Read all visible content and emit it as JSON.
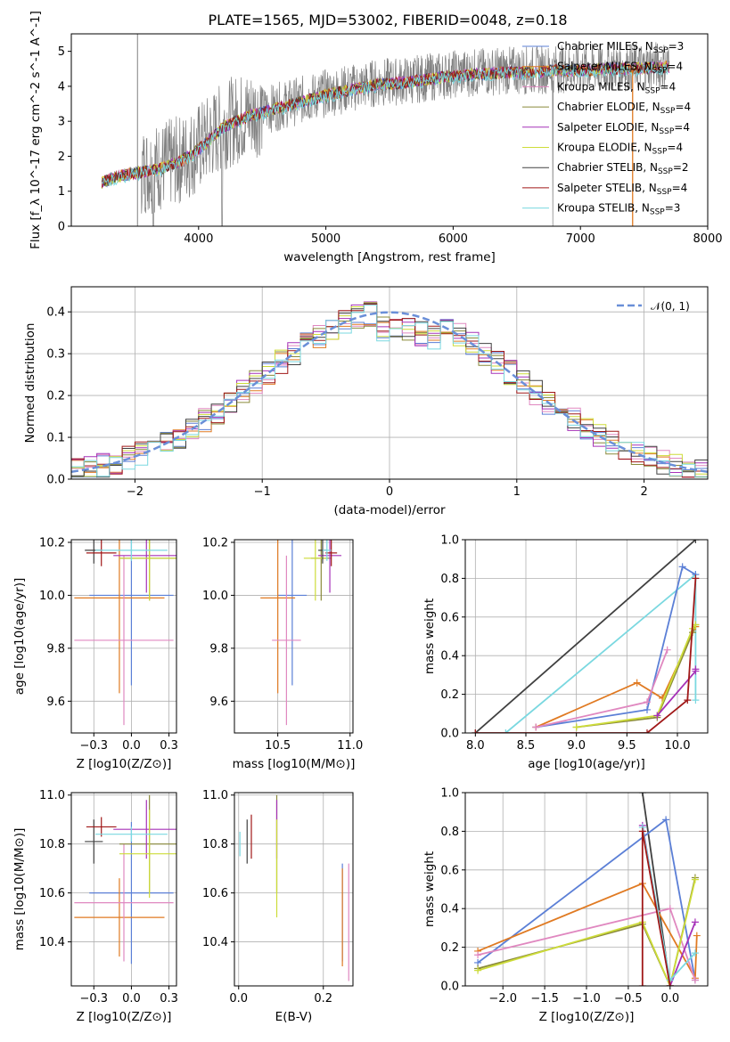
{
  "figure": {
    "title": "PLATE=1565, MJD=53002, FIBERID=0048, z=0.18"
  },
  "colors": {
    "Chabrier MILES": "#5b7fd6",
    "Salpeter MILES": "#e07a22",
    "Kroupa MILES": "#e088c0",
    "Chabrier ELODIE": "#8a8a3a",
    "Salpeter ELODIE": "#a632b8",
    "Kroupa ELODIE": "#cddc39",
    "Chabrier STELIB": "#404040",
    "Salpeter STELIB": "#a01818",
    "Kroupa STELIB": "#7ad8e0",
    "data": "#808080",
    "normal": "#6a8fd8"
  },
  "chart_data": [
    {
      "id": "spectrum",
      "type": "line",
      "title": "PLATE=1565, MJD=53002, FIBERID=0048, z=0.18",
      "xlabel": "wavelength [Angstrom, rest frame]",
      "ylabel": "Flux [f_λ 10^-17 erg cm^-2 s^-1 A^-1]",
      "xlim": [
        3000,
        8000
      ],
      "ylim": [
        0,
        5.5
      ],
      "xticks": [
        4000,
        5000,
        6000,
        7000,
        8000
      ],
      "yticks": [
        0,
        1,
        2,
        3,
        4,
        5
      ],
      "grid": false,
      "legend_position": "top-right",
      "continuum": {
        "x": [
          3240,
          3400,
          3550,
          3700,
          3850,
          3950,
          4050,
          4200,
          4400,
          4600,
          4800,
          5000,
          5200,
          5400,
          5600,
          5800,
          6000,
          6200,
          6400,
          6600,
          6800,
          7000,
          7200,
          7400,
          7600,
          7700
        ],
        "y": [
          1.3,
          1.5,
          1.6,
          1.7,
          1.9,
          2.1,
          2.4,
          2.9,
          3.2,
          3.4,
          3.6,
          3.8,
          3.95,
          4.1,
          4.15,
          4.25,
          4.35,
          4.4,
          4.45,
          4.45,
          4.5,
          4.5,
          4.55,
          4.55,
          4.6,
          4.6
        ]
      },
      "series": [
        {
          "name": "Chabrier MILES",
          "nssp": "3"
        },
        {
          "name": "Salpeter MILES",
          "nssp": "4"
        },
        {
          "name": "Kroupa MILES",
          "nssp": "4"
        },
        {
          "name": "Chabrier ELODIE",
          "nssp": "4"
        },
        {
          "name": "Salpeter ELODIE",
          "nssp": "4"
        },
        {
          "name": "Kroupa ELODIE",
          "nssp": "4"
        },
        {
          "name": "Chabrier STELIB",
          "nssp": "2"
        },
        {
          "name": "Salpeter STELIB",
          "nssp": "4"
        },
        {
          "name": "Kroupa STELIB",
          "nssp": "3"
        }
      ]
    },
    {
      "id": "residuals",
      "type": "bar",
      "xlabel": "(data-model)/error",
      "ylabel": "Normed distribution",
      "xlim": [
        -2.5,
        2.5
      ],
      "ylim": [
        0,
        0.46
      ],
      "xticks": [
        -2,
        -1,
        0,
        1,
        2
      ],
      "yticks": [
        0.0,
        0.1,
        0.2,
        0.3,
        0.4
      ],
      "grid": true,
      "legend": "𝒩(0, 1)",
      "legend_position": "top-right",
      "bin_width": 0.1
    },
    {
      "id": "age-vs-Z",
      "type": "scatter",
      "xlabel": "Z [log10(Z/Z⊙)]",
      "ylabel": "age [log10(age/yr)]",
      "xlim": [
        -0.4,
        0.3
      ],
      "ylim": [
        9.48,
        10.21
      ],
      "xticks": [
        -0.25,
        0.0,
        0.25
      ],
      "yticks": [
        9.6,
        9.8,
        10.0,
        10.2
      ],
      "grid": true,
      "points": [
        {
          "series": "Chabrier MILES",
          "x": 0.0,
          "y": 10.0,
          "xerr": 0.28,
          "yerr": 0.34
        },
        {
          "series": "Salpeter MILES",
          "x": -0.08,
          "y": 9.99,
          "xerr": 0.3,
          "yerr": 0.36
        },
        {
          "series": "Kroupa MILES",
          "x": -0.05,
          "y": 9.83,
          "xerr": 0.33,
          "yerr": 0.32
        },
        {
          "series": "Chabrier ELODIE",
          "x": 0.12,
          "y": 10.14,
          "xerr": 0.2,
          "yerr": 0.16
        },
        {
          "series": "Salpeter ELODIE",
          "x": 0.1,
          "y": 10.15,
          "xerr": 0.22,
          "yerr": 0.14
        },
        {
          "series": "Kroupa ELODIE",
          "x": 0.12,
          "y": 10.14,
          "xerr": 0.2,
          "yerr": 0.16
        },
        {
          "series": "Chabrier STELIB",
          "x": -0.25,
          "y": 10.17,
          "xerr": 0.06,
          "yerr": 0.05
        },
        {
          "series": "Salpeter STELIB",
          "x": -0.2,
          "y": 10.16,
          "xerr": 0.1,
          "yerr": 0.05
        },
        {
          "series": "Kroupa STELIB",
          "x": 0.0,
          "y": 10.17,
          "xerr": 0.24,
          "yerr": 0.04
        }
      ]
    },
    {
      "id": "age-vs-mass",
      "type": "scatter",
      "xlabel": "mass [log10(M/M⊙)]",
      "ylabel": "",
      "xlim": [
        10.2,
        11.02
      ],
      "ylim": [
        9.48,
        10.21
      ],
      "xticks": [
        10.5,
        11.0
      ],
      "yticks": [
        9.6,
        9.8,
        10.0,
        10.2
      ],
      "grid": true,
      "points": [
        {
          "series": "Chabrier MILES",
          "x": 10.6,
          "y": 10.0,
          "xerr": 0.1,
          "yerr": 0.34
        },
        {
          "series": "Salpeter MILES",
          "x": 10.5,
          "y": 9.99,
          "xerr": 0.12,
          "yerr": 0.36
        },
        {
          "series": "Kroupa MILES",
          "x": 10.56,
          "y": 9.83,
          "xerr": 0.1,
          "yerr": 0.32
        },
        {
          "series": "Chabrier ELODIE",
          "x": 10.8,
          "y": 10.14,
          "xerr": 0.07,
          "yerr": 0.16
        },
        {
          "series": "Salpeter ELODIE",
          "x": 10.86,
          "y": 10.15,
          "xerr": 0.08,
          "yerr": 0.14
        },
        {
          "series": "Kroupa ELODIE",
          "x": 10.76,
          "y": 10.14,
          "xerr": 0.08,
          "yerr": 0.16
        },
        {
          "series": "Chabrier STELIB",
          "x": 10.81,
          "y": 10.17,
          "xerr": 0.03,
          "yerr": 0.05
        },
        {
          "series": "Salpeter STELIB",
          "x": 10.87,
          "y": 10.16,
          "xerr": 0.04,
          "yerr": 0.05
        },
        {
          "series": "Kroupa STELIB",
          "x": 10.84,
          "y": 10.17,
          "xerr": 0.03,
          "yerr": 0.04
        }
      ]
    },
    {
      "id": "weight-vs-age",
      "type": "line",
      "xlabel": "age [log10(age/yr)]",
      "ylabel": "mass weight",
      "xlim": [
        7.9,
        10.3
      ],
      "ylim": [
        0,
        1.0
      ],
      "xticks": [
        8.0,
        8.5,
        9.0,
        9.5,
        10.0
      ],
      "yticks": [
        0.0,
        0.2,
        0.4,
        0.6,
        0.8,
        1.0
      ],
      "grid": true,
      "series": [
        {
          "name": "Chabrier STELIB",
          "x": [
            8.0,
            10.18
          ],
          "y": [
            0.0,
            1.0
          ]
        },
        {
          "name": "Kroupa STELIB",
          "x": [
            8.3,
            10.18,
            10.18
          ],
          "y": [
            0.0,
            0.82,
            0.17
          ]
        },
        {
          "name": "Chabrier MILES",
          "x": [
            8.6,
            9.7,
            10.05,
            10.18
          ],
          "y": [
            0.03,
            0.12,
            0.86,
            0.82
          ]
        },
        {
          "name": "Salpeter MILES",
          "x": [
            8.6,
            9.6,
            9.85,
            10.18
          ],
          "y": [
            0.03,
            0.26,
            0.18,
            0.55
          ]
        },
        {
          "name": "Kroupa MILES",
          "x": [
            8.6,
            9.7,
            9.9
          ],
          "y": [
            0.03,
            0.16,
            0.43
          ]
        },
        {
          "name": "Chabrier ELODIE",
          "x": [
            9.0,
            9.8,
            10.15,
            10.18
          ],
          "y": [
            0.03,
            0.08,
            0.52,
            0.56
          ]
        },
        {
          "name": "Kroupa ELODIE",
          "x": [
            9.0,
            9.8,
            10.15,
            10.18
          ],
          "y": [
            0.03,
            0.09,
            0.54,
            0.56
          ]
        },
        {
          "name": "Salpeter ELODIE",
          "x": [
            9.8,
            10.18,
            10.18
          ],
          "y": [
            0.09,
            0.32,
            0.33
          ]
        },
        {
          "name": "Salpeter STELIB",
          "x": [
            8.0,
            9.7,
            10.1,
            10.18
          ],
          "y": [
            0.0,
            0.0,
            0.17,
            0.8
          ]
        }
      ]
    },
    {
      "id": "mass-vs-Z",
      "type": "scatter",
      "xlabel": "Z [log10(Z/Z⊙)]",
      "ylabel": "mass [log10(M/M⊙)]",
      "xlim": [
        -0.4,
        0.3
      ],
      "ylim": [
        10.22,
        11.01
      ],
      "xticks": [
        -0.25,
        0.0,
        0.25
      ],
      "yticks": [
        10.4,
        10.6,
        10.8,
        11.0
      ],
      "grid": true,
      "points": [
        {
          "series": "Chabrier MILES",
          "x": 0.0,
          "y": 10.6,
          "xerr": 0.28,
          "yerr": 0.29
        },
        {
          "series": "Salpeter MILES",
          "x": -0.08,
          "y": 10.5,
          "xerr": 0.3,
          "yerr": 0.16
        },
        {
          "series": "Kroupa MILES",
          "x": -0.05,
          "y": 10.56,
          "xerr": 0.33,
          "yerr": 0.24
        },
        {
          "series": "Chabrier ELODIE",
          "x": 0.12,
          "y": 10.8,
          "xerr": 0.2,
          "yerr": 0.2
        },
        {
          "series": "Salpeter ELODIE",
          "x": 0.1,
          "y": 10.86,
          "xerr": 0.22,
          "yerr": 0.12
        },
        {
          "series": "Kroupa ELODIE",
          "x": 0.12,
          "y": 10.76,
          "xerr": 0.2,
          "yerr": 0.18
        },
        {
          "series": "Chabrier STELIB",
          "x": -0.25,
          "y": 10.81,
          "xerr": 0.06,
          "yerr": 0.09
        },
        {
          "series": "Salpeter STELIB",
          "x": -0.2,
          "y": 10.87,
          "xerr": 0.1,
          "yerr": 0.04
        },
        {
          "series": "Kroupa STELIB",
          "x": 0.0,
          "y": 10.84,
          "xerr": 0.24,
          "yerr": 0.03
        }
      ]
    },
    {
      "id": "mass-vs-EBV",
      "type": "scatter",
      "xlabel": "E(B-V)",
      "ylabel": "",
      "xlim": [
        -0.01,
        0.27
      ],
      "ylim": [
        10.22,
        11.01
      ],
      "xticks": [
        0.0,
        0.2
      ],
      "yticks": [
        10.4,
        10.6,
        10.8,
        11.0
      ],
      "grid": true,
      "points": [
        {
          "series": "Chabrier MILES",
          "x": 0.245,
          "y": 10.52,
          "yerr": 0.2
        },
        {
          "series": "Salpeter MILES",
          "x": 0.245,
          "y": 10.5,
          "yerr": 0.2
        },
        {
          "series": "Kroupa MILES",
          "x": 0.26,
          "y": 10.48,
          "yerr": 0.24
        },
        {
          "series": "Chabrier ELODIE",
          "x": 0.09,
          "y": 10.8,
          "yerr": 0.2
        },
        {
          "series": "Salpeter ELODIE",
          "x": 0.09,
          "y": 10.86,
          "yerr": 0.12
        },
        {
          "series": "Kroupa ELODIE",
          "x": 0.09,
          "y": 10.7,
          "yerr": 0.2
        },
        {
          "series": "Chabrier STELIB",
          "x": 0.02,
          "y": 10.81,
          "yerr": 0.09
        },
        {
          "series": "Salpeter STELIB",
          "x": 0.03,
          "y": 10.83,
          "yerr": 0.09
        },
        {
          "series": "Kroupa STELIB",
          "x": 0.003,
          "y": 10.8,
          "yerr": 0.05
        }
      ]
    },
    {
      "id": "weight-vs-Z",
      "type": "line",
      "xlabel": "Z [log10(Z/Z⊙)]",
      "ylabel": "mass weight",
      "xlim": [
        -2.45,
        0.45
      ],
      "ylim": [
        0,
        1.0
      ],
      "xticks": [
        -2.0,
        -1.5,
        -1.0,
        -0.5,
        0.0
      ],
      "yticks": [
        0.0,
        0.2,
        0.4,
        0.6,
        0.8,
        1.0
      ],
      "grid": true,
      "series": [
        {
          "name": "Chabrier STELIB",
          "x": [
            -0.33,
            0.0
          ],
          "y": [
            1.0,
            0.0
          ]
        },
        {
          "name": "Chabrier MILES",
          "x": [
            -2.3,
            -0.05,
            0.3
          ],
          "y": [
            0.12,
            0.86,
            0.03
          ]
        },
        {
          "name": "Salpeter MILES",
          "x": [
            -2.3,
            -0.33,
            0.3,
            0.32
          ],
          "y": [
            0.18,
            0.53,
            0.04,
            0.26
          ]
        },
        {
          "name": "Kroupa MILES",
          "x": [
            -2.3,
            0.0,
            0.3
          ],
          "y": [
            0.16,
            0.4,
            0.03
          ]
        },
        {
          "name": "Chabrier ELODIE",
          "x": [
            -2.3,
            -0.33,
            0.0,
            0.3
          ],
          "y": [
            0.09,
            0.32,
            0.0,
            0.56
          ]
        },
        {
          "name": "Kroupa ELODIE",
          "x": [
            -2.3,
            -0.33,
            0.0,
            0.3
          ],
          "y": [
            0.08,
            0.33,
            0.0,
            0.55
          ]
        },
        {
          "name": "Salpeter ELODIE",
          "x": [
            -0.33,
            0.0,
            0.3
          ],
          "y": [
            0.83,
            0.0,
            0.33
          ]
        },
        {
          "name": "Kroupa STELIB",
          "x": [
            -0.33,
            0.0,
            0.3
          ],
          "y": [
            0.82,
            0.03,
            0.17
          ]
        },
        {
          "name": "Salpeter STELIB",
          "x": [
            -0.33,
            -0.33,
            0.0
          ],
          "y": [
            0.0,
            0.8,
            0.0
          ]
        }
      ]
    }
  ]
}
